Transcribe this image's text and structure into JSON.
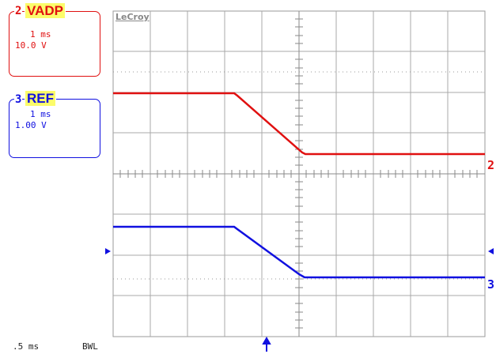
{
  "brand": "LeCroy",
  "channels": [
    {
      "number": "2",
      "name": "VADP",
      "timebase": "1 ms",
      "scale": "10.0 V",
      "color": "#e01010"
    },
    {
      "number": "3",
      "name": "REF",
      "timebase": "1 ms",
      "scale": "1.00 V",
      "color": "#1010e0"
    }
  ],
  "footer": {
    "timebase": ".5 ms",
    "bandwidth": "BWL"
  },
  "trace_labels": {
    "ch2": "2",
    "ch3": "3"
  },
  "colors": {
    "ch2": "#e01010",
    "ch3": "#1010e0",
    "grid": "#9a9a9a",
    "badge": "#fcfc6a"
  }
}
